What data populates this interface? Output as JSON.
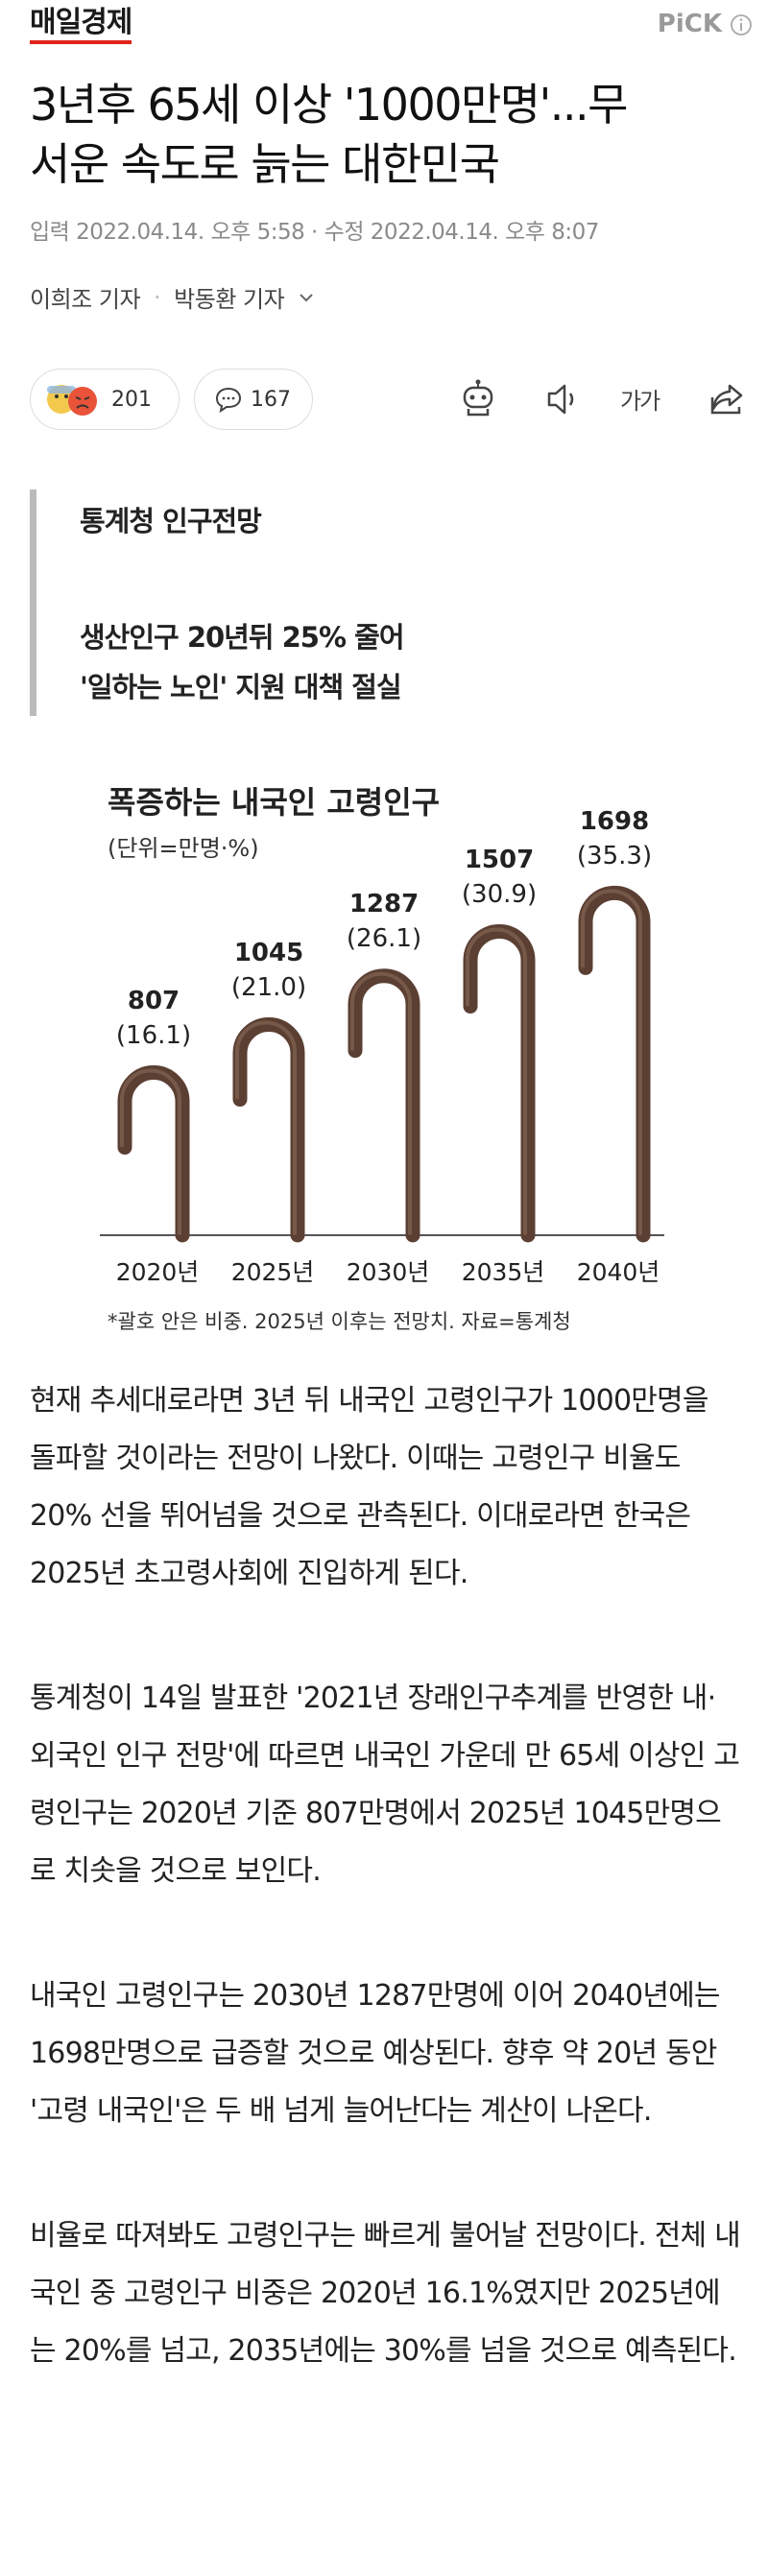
{
  "header": {
    "logo": "매일경제",
    "badge": "PiCK"
  },
  "article": {
    "title_lines": [
      "3년후 65세 이상 '1000만명'...무",
      "서운 속도로 늙는 대한민국"
    ],
    "published": "입력 2022.04.14. 오후 5:58",
    "modified": "수정 2022.04.14. 오후 8:07",
    "reporters": [
      "이희조 기자",
      "박동환 기자"
    ],
    "reactions": 201,
    "comments": 167,
    "font_button": "가가",
    "summary": {
      "heading": "통계청 인구전망",
      "lines": [
        "생산인구 20년뒤 25% 줄어",
        "'일하는 노인' 지원 대책 절실"
      ]
    },
    "paragraphs": [
      "현재 추세대로라면 3년 뒤 내국인 고령인구가 1000만명을 돌파할 것이라는 전망이 나왔다. 이때는 고령인구 비율도 20% 선을 뛰어넘을 것으로 관측된다. 이대로라면 한국은 2025년 초고령사회에 진입하게 된다.",
      "통계청이 14일 발표한 '2021년 장래인구추계를 반영한 내·외국인 인구 전망'에 따르면 내국인 가운데 만 65세 이상인 고령인구는 2020년 기준 807만명에서 2025년 1045만명으로 치솟을 것으로 보인다.",
      "내국인 고령인구는 2030년 1287만명에 이어 2040년에는 1698만명으로 급증할 것으로 예상된다. 향후 약 20년 동안 '고령 내국인'은 두 배 넘게 늘어난다는 계산이 나온다.",
      "비율로 따져봐도 고령인구는 빠르게 불어날 전망이다. 전체 내국인 중 고령인구 비중은 2020년 16.1%였지만 2025년에는 20%를 넘고, 2035년에는 30%를 넘을 것으로 예측된다."
    ]
  },
  "chart_data": {
    "type": "bar",
    "title": "폭증하는 내국인 고령인구",
    "subtitle": "(단위=만명·%)",
    "categories": [
      "2020년",
      "2025년",
      "2030년",
      "2035년",
      "2040년"
    ],
    "values": [
      807,
      1045,
      1287,
      1507,
      1698
    ],
    "shares": [
      16.1,
      21.0,
      26.1,
      30.9,
      35.3
    ],
    "share_labels": [
      "(16.1)",
      "(21.0)",
      "(26.1)",
      "(30.9)",
      "(35.3)"
    ],
    "color": "#5b3f33",
    "note": "*괄호 안은 비중. 2025년 이후는 전망치. 자료=통계청"
  }
}
